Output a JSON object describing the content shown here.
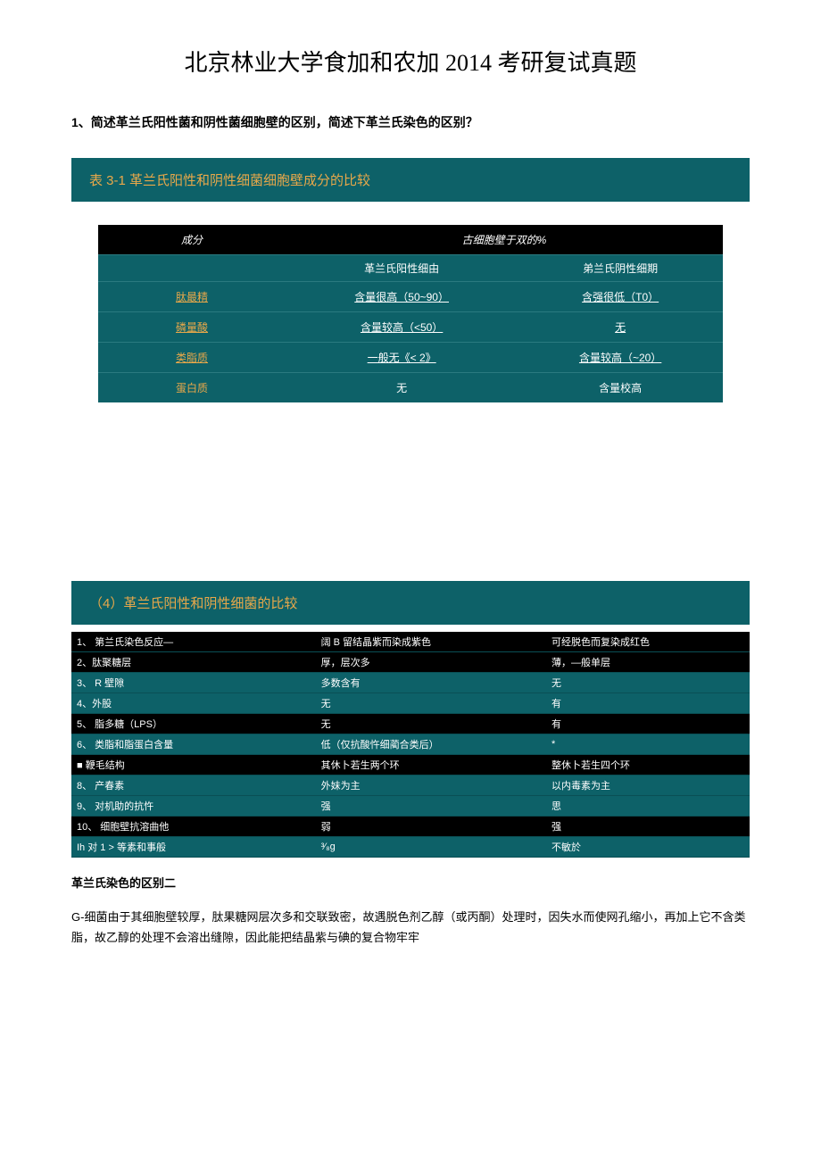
{
  "title": "北京林业大学食加和农加 2014 考研复试真题",
  "question1": "1、简述革兰氏阳性菌和阴性菌细胞壁的区别，简述下革兰氏染色的区别？",
  "section1_header": "表 3-1 革兰氏阳性和阴性细菌细胞壁成分的比较",
  "table1": {
    "header_left": "成分",
    "header_right": "古细胞壁于双的%",
    "sub_left": "革兰氏阳性细由",
    "sub_right": "弟兰氏阴性细期",
    "rows": [
      {
        "c": "肽最精",
        "a": "含量很高（50~90）",
        "b": "含强很低（T0）"
      },
      {
        "c": "磷量酸",
        "a": "含量较高（<50）",
        "b": "无"
      },
      {
        "c": "类脂质",
        "a": "一般无《< 2》",
        "b": "含量较高（~20）"
      },
      {
        "c": "蛋白质",
        "a": "无",
        "b": "含量校高"
      }
    ]
  },
  "section2_header": "（4）革兰氏阳性和阴性细菌的比较",
  "table2": {
    "rows": [
      {
        "n": "1、 第兰氏染色反应—",
        "a": "阔 B 留结晶紫而染成紫色",
        "b": "可经脱色而复染成红色",
        "dark": true
      },
      {
        "n": "2、肽聚糖层",
        "a": "厚，层次多",
        "b": "薄，—般单层",
        "dark": true
      },
      {
        "n": "3、 R 壁隙",
        "a": "多数含有",
        "b": "无",
        "dark": false
      },
      {
        "n": "4、外股",
        "a": "无",
        "b": "有",
        "dark": false
      },
      {
        "n": "5、 脂多糖（LPS）",
        "a": "无",
        "b": "有",
        "dark": true
      },
      {
        "n": "6、 类脂和脂蛋白含量",
        "a": "低（仅抗酸忤细蔺合类后）",
        "b": "*",
        "dark": false
      },
      {
        "n": "■   鞭毛结构",
        "a": "其休卜若生两个环",
        "b": "整休卜若生四个环",
        "dark": true
      },
      {
        "n": "8、 产春素",
        "a": "外妹为主",
        "b": "以内毒素为主",
        "dark": false
      },
      {
        "n": "9、 对机助的抗忤",
        "a": "强",
        "b": "思",
        "dark": false
      },
      {
        "n": "10、 细胞壁抗溶曲他",
        "a": "弱",
        "b": "强",
        "dark": true
      },
      {
        "n": "Ih 对 1 > 等素和事般",
        "a": "³⁄₈g",
        "b": "不敏於",
        "dark": false
      }
    ]
  },
  "subtitle": "革兰氏染色的区别二",
  "paragraph": "G-细菌由于其细胞壁较厚，肽果糖网层次多和交联致密，故遇脱色剂乙醇（或丙酮）处理时，因失水而使网孔缩小，再加上它不含类脂，故乙醇的处理不会溶出缝隙，因此能把结晶紫与碘的复合物牢牢"
}
